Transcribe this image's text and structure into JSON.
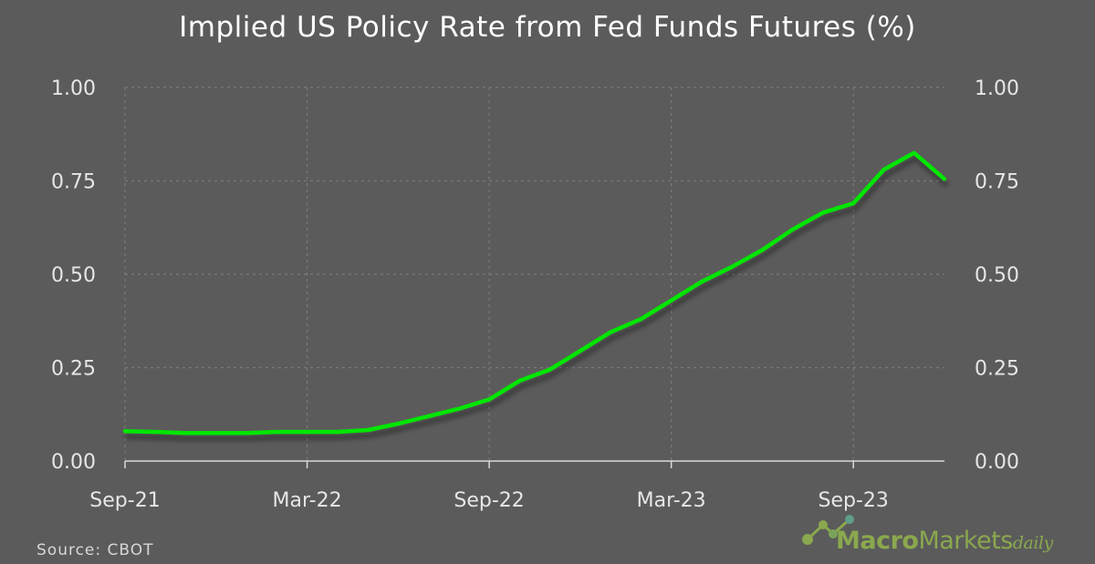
{
  "chart_data": {
    "type": "line",
    "title": "Implied US Policy Rate from Fed Funds Futures (%)",
    "source": "Source:  CBOT",
    "x": [
      "2021-09",
      "2021-10",
      "2021-11",
      "2021-12",
      "2022-01",
      "2022-02",
      "2022-03",
      "2022-04",
      "2022-05",
      "2022-06",
      "2022-07",
      "2022-08",
      "2022-09",
      "2022-10",
      "2022-11",
      "2022-12",
      "2023-01",
      "2023-02",
      "2023-03",
      "2023-04",
      "2023-05",
      "2023-06",
      "2023-07",
      "2023-08",
      "2023-09",
      "2023-10",
      "2023-11",
      "2023-12"
    ],
    "x_tick_labels": [
      "Sep-21",
      "Mar-22",
      "Sep-22",
      "Mar-23",
      "Sep-23"
    ],
    "series": [
      {
        "color": "#00e600",
        "values": [
          0.08,
          0.078,
          0.075,
          0.075,
          0.075,
          0.078,
          0.078,
          0.078,
          0.083,
          0.1,
          0.12,
          0.14,
          0.165,
          0.215,
          0.245,
          0.295,
          0.345,
          0.38,
          0.43,
          0.48,
          0.52,
          0.565,
          0.62,
          0.665,
          0.69,
          0.78,
          0.825,
          0.755
        ]
      }
    ],
    "ylim": [
      0,
      1.0
    ],
    "y_ticks": [
      "0.00",
      "0.25",
      "0.50",
      "0.75",
      "1.00"
    ],
    "y_axis_both_sides": true,
    "grid": true,
    "legend": "none"
  },
  "branding": {
    "macro": "Macro",
    "markets": "Markets",
    "daily": "daily",
    "logo_icon": "line-chart-nodes-icon"
  },
  "colors": {
    "background": "#5b5b5b",
    "line": "#00e600",
    "grid": "#7a7a7a",
    "brand": "#8aa84e"
  }
}
